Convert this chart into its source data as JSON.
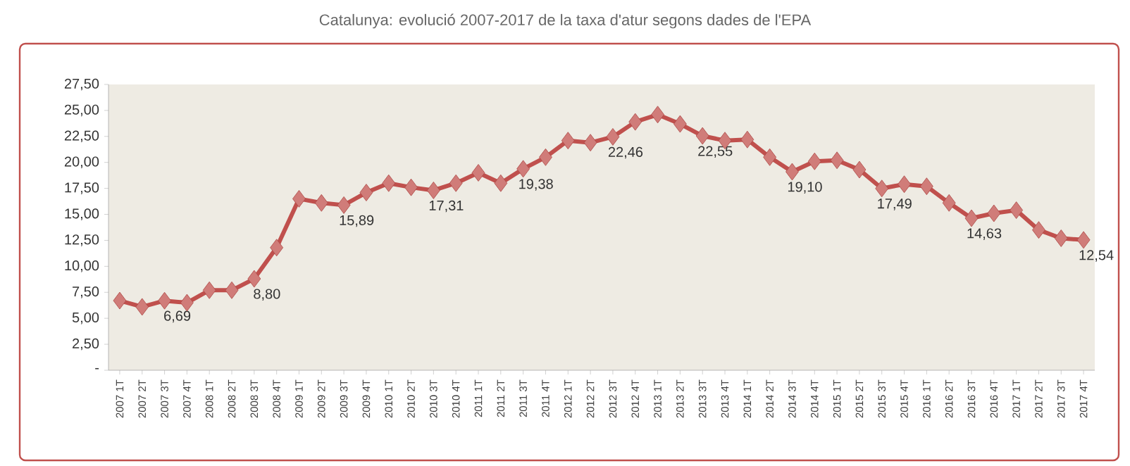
{
  "chart_data": {
    "type": "line",
    "title": "Catalunya: evolució 2007-2017 de la taxa d'atur segons dades de l'EPA",
    "categories": [
      "2007 1T",
      "2007 2T",
      "2007 3T",
      "2007 4T",
      "2008 1T",
      "2008 2T",
      "2008 3T",
      "2008 4T",
      "2009 1T",
      "2009 2T",
      "2009 3T",
      "2009 4T",
      "2010 1T",
      "2010 2T",
      "2010 3T",
      "2010 4T",
      "2011 1T",
      "2011 2T",
      "2011 3T",
      "2011 4T",
      "2012 1T",
      "2012 2T",
      "2012 3T",
      "2012 4T",
      "2013 1T",
      "2013 2T",
      "2013 3T",
      "2013 4T",
      "2014 1T",
      "2014 2T",
      "2014 3T",
      "2014 4T",
      "2015 1T",
      "2015 2T",
      "2015 3T",
      "2015 4T",
      "2016 1T",
      "2016 2T",
      "2016 3T",
      "2016 4T",
      "2017 1T",
      "2017 2T",
      "2017 3T",
      "2017 4T"
    ],
    "series": [
      {
        "color": "#c0504d",
        "values": [
          6.7,
          6.1,
          6.69,
          6.5,
          7.7,
          7.7,
          8.8,
          11.8,
          16.5,
          16.1,
          15.89,
          17.1,
          18.0,
          17.6,
          17.31,
          18.0,
          19.0,
          18.0,
          19.38,
          20.5,
          22.1,
          21.9,
          22.46,
          23.9,
          24.6,
          23.7,
          22.55,
          22.1,
          22.2,
          20.5,
          19.1,
          20.1,
          20.2,
          19.3,
          17.49,
          17.9,
          17.7,
          16.1,
          14.63,
          15.1,
          15.4,
          13.5,
          12.7,
          12.54
        ],
        "value_labels": [
          null,
          null,
          "6,69",
          null,
          null,
          null,
          "8,80",
          null,
          null,
          null,
          "15,89",
          null,
          null,
          null,
          "17,31",
          null,
          null,
          null,
          "19,38",
          null,
          null,
          null,
          "22,46",
          null,
          null,
          null,
          "22,55",
          null,
          null,
          null,
          "19,10",
          null,
          null,
          null,
          "17,49",
          null,
          null,
          null,
          "14,63",
          null,
          null,
          null,
          null,
          "12,54"
        ]
      }
    ],
    "ylim": [
      0,
      27.5
    ],
    "yticks": [
      {
        "value": 0,
        "label": "-"
      },
      {
        "value": 2.5,
        "label": "2,50"
      },
      {
        "value": 5,
        "label": "5,00"
      },
      {
        "value": 7.5,
        "label": "7,50"
      },
      {
        "value": 10,
        "label": "10,00"
      },
      {
        "value": 12.5,
        "label": "12,50"
      },
      {
        "value": 15,
        "label": "15,00"
      },
      {
        "value": 17.5,
        "label": "17,50"
      },
      {
        "value": 20,
        "label": "20,00"
      },
      {
        "value": 22.5,
        "label": "22,50"
      },
      {
        "value": 25,
        "label": "25,00"
      },
      {
        "value": 27.5,
        "label": "27,50"
      }
    ],
    "marker": "diamond"
  }
}
